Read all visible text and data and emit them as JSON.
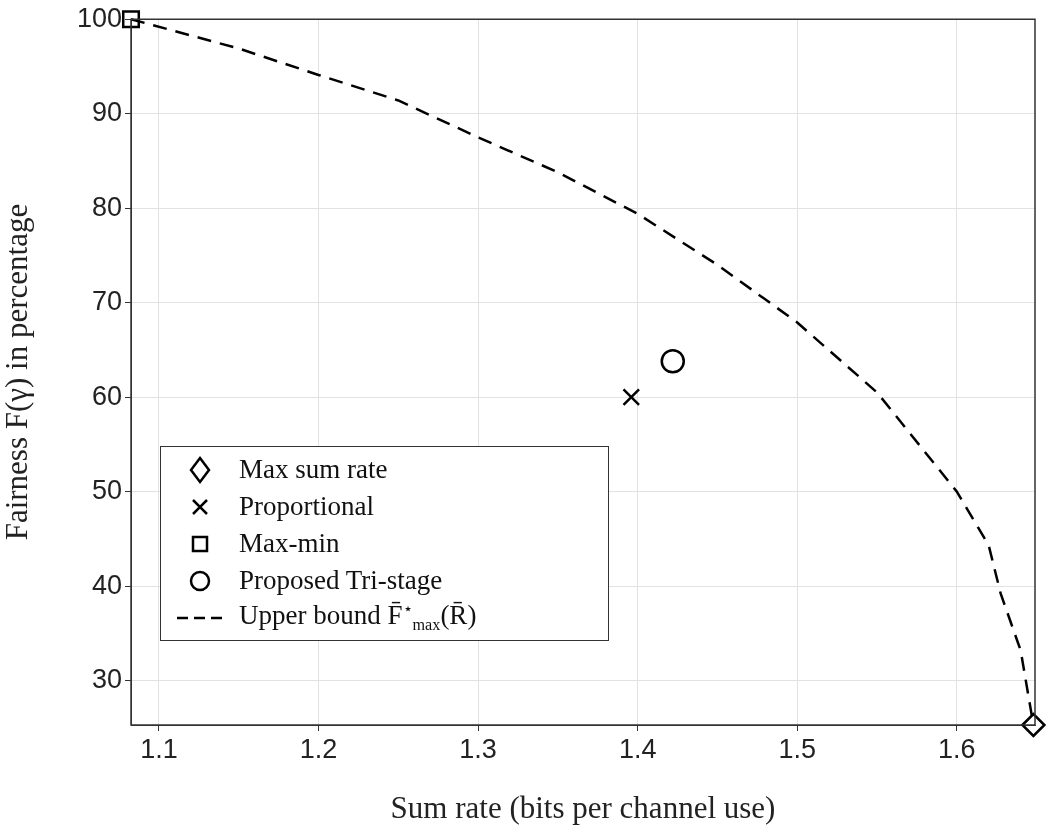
{
  "chart_data": {
    "type": "scatter",
    "xlabel": "Sum rate (bits per channel use)",
    "ylabel": "Fairness F(γ) in percentage",
    "xlim": [
      1.0825,
      1.649
    ],
    "xticks": [
      1.1,
      1.2,
      1.3,
      1.4,
      1.5,
      1.6
    ],
    "ylim": [
      25.3,
      100
    ],
    "yticks": [
      30,
      40,
      50,
      60,
      70,
      80,
      90,
      100
    ],
    "grid": true,
    "legend": "bottom left",
    "series": [
      {
        "name": "Max sum rate",
        "marker": "diamond",
        "color": "#000000",
        "x": [
          1.648
        ],
        "values": [
          25.3
        ]
      },
      {
        "name": "Proportional",
        "marker": "cross",
        "color": "#000000",
        "x": [
          1.396
        ],
        "values": [
          60
        ]
      },
      {
        "name": "Max-min",
        "marker": "square",
        "color": "#000000",
        "x": [
          1.0825
        ],
        "values": [
          100
        ]
      },
      {
        "name": "Proposed Tri-stage",
        "marker": "circle",
        "color": "#000000",
        "x": [
          1.422
        ],
        "values": [
          63.8
        ]
      },
      {
        "name": "Upper bound F̄$^{⋆}$$_{max}$(R̄)",
        "type": "line",
        "marker": "none",
        "line_style": "dashed",
        "color": "#000000",
        "x": [
          1.0825,
          1.15,
          1.2,
          1.25,
          1.3,
          1.35,
          1.4,
          1.45,
          1.5,
          1.55,
          1.6,
          1.62,
          1.6275,
          1.64,
          1.648
        ],
        "values": [
          100,
          96.9,
          94.1,
          91.4,
          87.5,
          83.8,
          79.4,
          74,
          67.9,
          60.5,
          50,
          44.3,
          39.2,
          33.2,
          25.3
        ]
      }
    ]
  }
}
